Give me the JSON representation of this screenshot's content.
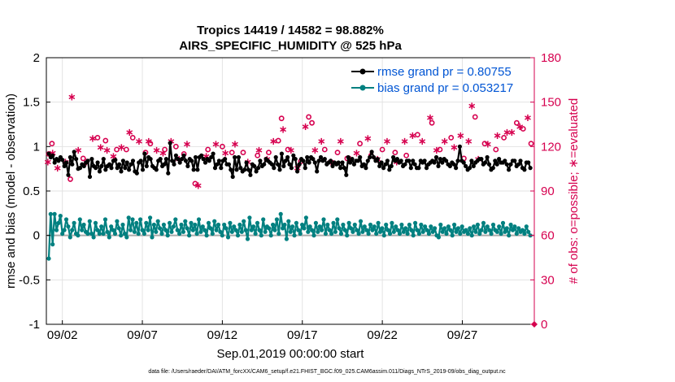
{
  "chart_data": {
    "type": "line",
    "title_line1": "Tropics 14419 / 14582 = 98.882%",
    "title_line2": "AIRS_SPECIFIC_HUMIDITY @ 525 hPa",
    "ylabel_left": "rmse and bias (model - observation)",
    "ylabel_right": "# of obs: o=possible; ∗=evaluated",
    "xlabel": "Sep.01,2019 00:00:00 start",
    "footer": "data file: /Users/raeder/DAI/ATM_forcXX/CAM6_setup/f.e21.FHIST_BGC.f09_025.CAM6assim.011/Diags_NTrS_2019-09/obs_diag_output.nc",
    "ylim_left": [
      -1,
      2
    ],
    "ylim_right": [
      0,
      180
    ],
    "xlim": [
      0,
      30.5
    ],
    "grid": true,
    "legend_position": "top-right",
    "left_ticks": [
      "-1",
      "-0.5",
      "0",
      "0.5",
      "1",
      "1.5",
      "2"
    ],
    "right_ticks": [
      "0",
      "30",
      "60",
      "90",
      "120",
      "150",
      "180"
    ],
    "x_ticks": [
      {
        "x": 1,
        "label": "09/02"
      },
      {
        "x": 6,
        "label": "09/07"
      },
      {
        "x": 11,
        "label": "09/12"
      },
      {
        "x": 16,
        "label": "09/17"
      },
      {
        "x": 21,
        "label": "09/22"
      },
      {
        "x": 26,
        "label": "09/27"
      }
    ],
    "colors": {
      "rmse": "#000000",
      "bias": "#008080",
      "obs": "#d6004f",
      "zero_line": "#aaaaaa",
      "grid": "#e3e3e3"
    },
    "series": [
      {
        "name": "rmse",
        "label": "rmse grand pr = 0.80755",
        "values": [
          0.92,
          0.88,
          0.9,
          0.82,
          0.86,
          0.84,
          0.88,
          0.85,
          0.78,
          0.82,
          0.68,
          0.88,
          0.8,
          0.94,
          0.86,
          0.75,
          0.76,
          0.8,
          0.78,
          0.82,
          0.84,
          0.66,
          0.86,
          0.78,
          0.76,
          0.82,
          0.72,
          0.78,
          0.86,
          0.74,
          0.78,
          0.8,
          0.76,
          0.84,
          0.85,
          0.76,
          0.8,
          0.72,
          0.84,
          0.76,
          0.82,
          0.74,
          0.8,
          0.84,
          0.72,
          0.7,
          0.82,
          0.84,
          0.74,
          0.92,
          0.78,
          0.88,
          0.86,
          0.78,
          0.76,
          0.74,
          0.84,
          0.86,
          0.78,
          0.8,
          0.86,
          0.7,
          1.04,
          0.84,
          0.8,
          0.9,
          0.86,
          0.82,
          0.86,
          0.9,
          0.84,
          0.78,
          0.86,
          0.84,
          0.74,
          0.88,
          0.74,
          0.88,
          0.9,
          0.86,
          0.82,
          0.86,
          0.84,
          0.88,
          0.92,
          0.76,
          0.8,
          0.84,
          0.76,
          0.84,
          0.86,
          0.8,
          0.8,
          0.74,
          0.66,
          0.88,
          0.74,
          0.88,
          0.76,
          0.72,
          0.74,
          0.82,
          0.74,
          0.68,
          0.8,
          0.78,
          0.72,
          0.76,
          0.84,
          0.78,
          0.8,
          0.86,
          0.84,
          0.82,
          0.8,
          0.76,
          0.88,
          0.8,
          0.74,
          0.92,
          0.78,
          0.84,
          0.88,
          0.8,
          0.76,
          0.9,
          0.86,
          0.72,
          0.8,
          0.86,
          0.84,
          0.76,
          0.88,
          0.82,
          0.88,
          0.86,
          0.82,
          0.72,
          0.84,
          0.88,
          0.84,
          0.86,
          0.8,
          0.82,
          0.84,
          0.78,
          0.82,
          0.8,
          0.82,
          0.76,
          0.82,
          0.76,
          0.68,
          0.88,
          0.82,
          0.86,
          0.8,
          0.84,
          0.84,
          0.88,
          0.78,
          0.8,
          0.76,
          0.84,
          0.88,
          0.94,
          0.88,
          0.84,
          0.86,
          0.78,
          0.82,
          0.76,
          0.8,
          0.84,
          0.74,
          0.78,
          0.88,
          0.84,
          0.86,
          0.82,
          0.84,
          0.78,
          0.8,
          0.84,
          0.84,
          0.76,
          0.84,
          0.8,
          0.76,
          0.76,
          0.84,
          0.82,
          0.84,
          0.76,
          0.8,
          0.82,
          0.84,
          0.82,
          0.88,
          0.78,
          0.86,
          0.82,
          0.86,
          0.84,
          0.8,
          0.78,
          0.82,
          0.8,
          0.76,
          0.84,
          1.0,
          0.84,
          0.82,
          0.78,
          0.74,
          0.76,
          0.84,
          0.78,
          0.82,
          0.84,
          0.86,
          0.86,
          0.8,
          0.82,
          0.88,
          0.8,
          0.74,
          0.76,
          0.84,
          0.8,
          0.86,
          0.82,
          0.82,
          0.84,
          0.8,
          0.74,
          0.8,
          0.84,
          0.84,
          0.78,
          0.8,
          0.84,
          0.76,
          0.74,
          0.82,
          0.82,
          0.76
        ]
      },
      {
        "name": "bias",
        "label": "bias grand pr = 0.053217",
        "values": [
          -0.26,
          0.24,
          -0.1,
          0.24,
          0.06,
          0.14,
          0.22,
          0.02,
          0.06,
          0.18,
          0.1,
          -0.02,
          0.06,
          0.14,
          0.02,
          0.0,
          0.18,
          0.06,
          0.12,
          0.04,
          0.02,
          0.16,
          0.02,
          -0.02,
          0.14,
          0.06,
          0.02,
          0.1,
          0.02,
          0.18,
          0.04,
          -0.02,
          0.1,
          0.06,
          0.02,
          0.16,
          0.08,
          0.0,
          0.12,
          0.02,
          -0.02,
          0.2,
          0.06,
          0.18,
          0.04,
          0.14,
          0.02,
          0.18,
          0.06,
          0.02,
          0.14,
          0.06,
          0.2,
          -0.02,
          0.12,
          0.04,
          0.16,
          0.08,
          0.02,
          0.12,
          0.06,
          0.0,
          0.14,
          0.04,
          0.1,
          0.18,
          0.06,
          0.02,
          0.12,
          0.04,
          0.16,
          0.08,
          0.0,
          0.14,
          0.06,
          0.12,
          0.02,
          0.18,
          0.04,
          0.1,
          0.06,
          0.0,
          0.14,
          0.08,
          0.02,
          0.16,
          0.06,
          0.12,
          0.04,
          0.0,
          0.12,
          0.08,
          -0.02,
          0.14,
          0.04,
          0.1,
          0.06,
          0.0,
          0.12,
          0.04,
          0.16,
          0.06,
          -0.04,
          0.2,
          0.06,
          0.1,
          0.02,
          0.14,
          0.06,
          0.0,
          0.18,
          0.04,
          0.1,
          0.08,
          0.0,
          0.12,
          0.06,
          0.18,
          0.02,
          0.24,
          0.08,
          0.12,
          -0.04,
          0.16,
          0.04,
          0.1,
          0.0,
          0.14,
          0.06,
          0.02,
          0.12,
          0.08,
          0.2,
          0.04,
          0.1,
          0.06,
          0.0,
          0.14,
          0.04,
          0.1,
          0.06,
          0.18,
          0.02,
          0.12,
          0.06,
          0.02,
          0.14,
          0.04,
          0.18,
          0.08,
          0.02,
          0.12,
          0.06,
          0.0,
          0.14,
          0.08,
          0.04,
          0.12,
          0.06,
          0.02,
          0.16,
          0.04,
          0.1,
          0.06,
          0.02,
          0.12,
          0.06,
          0.1,
          0.02,
          0.14,
          0.04,
          0.08,
          0.0,
          0.12,
          0.06,
          0.02,
          0.14,
          0.04,
          0.1,
          0.06,
          0.02,
          0.12,
          0.04,
          0.08,
          0.02,
          0.12,
          0.06,
          0.0,
          0.14,
          0.06,
          0.02,
          0.12,
          0.04,
          0.1,
          0.06,
          0.02,
          0.1,
          0.04,
          0.08,
          0.0,
          -0.02,
          0.12,
          0.04,
          0.08,
          0.02,
          0.1,
          0.06,
          0.0,
          0.12,
          0.04,
          0.08,
          0.02,
          0.1,
          0.04,
          0.06,
          0.02,
          0.08,
          0.0,
          0.1,
          0.04,
          0.12,
          0.02,
          0.06,
          0.14,
          0.04,
          0.1,
          0.06,
          0.02,
          0.12,
          0.06,
          0.04,
          0.1,
          0.02,
          0.14,
          0.04,
          0.08,
          0.0,
          0.12,
          0.06,
          0.1,
          0.02,
          0.08,
          0.04,
          0.06,
          0.02,
          0.1,
          0.04,
          0.0
        ]
      }
    ],
    "obs_possible": [
      {
        "x": 0.15,
        "y": 115
      },
      {
        "x": 0.35,
        "y": 122
      },
      {
        "x": 1.5,
        "y": 98
      },
      {
        "x": 2.3,
        "y": 112
      },
      {
        "x": 3.2,
        "y": 126
      },
      {
        "x": 3.7,
        "y": 124
      },
      {
        "x": 4.4,
        "y": 118
      },
      {
        "x": 5.0,
        "y": 118
      },
      {
        "x": 5.4,
        "y": 126
      },
      {
        "x": 6.2,
        "y": 116
      },
      {
        "x": 6.5,
        "y": 122
      },
      {
        "x": 7.4,
        "y": 118
      },
      {
        "x": 8.1,
        "y": 120
      },
      {
        "x": 8.6,
        "y": 115
      },
      {
        "x": 9.3,
        "y": 95
      },
      {
        "x": 10.1,
        "y": 118
      },
      {
        "x": 11.0,
        "y": 120
      },
      {
        "x": 11.6,
        "y": 116
      },
      {
        "x": 12.3,
        "y": 116
      },
      {
        "x": 13.2,
        "y": 114
      },
      {
        "x": 13.9,
        "y": 116
      },
      {
        "x": 14.5,
        "y": 124
      },
      {
        "x": 14.7,
        "y": 139
      },
      {
        "x": 15.1,
        "y": 118
      },
      {
        "x": 15.9,
        "y": 110
      },
      {
        "x": 16.4,
        "y": 140
      },
      {
        "x": 16.6,
        "y": 136
      },
      {
        "x": 17.4,
        "y": 118
      },
      {
        "x": 18.2,
        "y": 116
      },
      {
        "x": 18.8,
        "y": 112
      },
      {
        "x": 19.6,
        "y": 122
      },
      {
        "x": 20.3,
        "y": 114
      },
      {
        "x": 21.0,
        "y": 118
      },
      {
        "x": 21.8,
        "y": 116
      },
      {
        "x": 22.5,
        "y": 114
      },
      {
        "x": 23.2,
        "y": 128
      },
      {
        "x": 24.1,
        "y": 136
      },
      {
        "x": 24.6,
        "y": 118
      },
      {
        "x": 25.3,
        "y": 126
      },
      {
        "x": 26.1,
        "y": 112
      },
      {
        "x": 26.8,
        "y": 140
      },
      {
        "x": 27.4,
        "y": 122
      },
      {
        "x": 28.1,
        "y": 118
      },
      {
        "x": 28.6,
        "y": 126
      },
      {
        "x": 29.4,
        "y": 136
      },
      {
        "x": 29.8,
        "y": 132
      },
      {
        "x": 30.3,
        "y": 122
      }
    ],
    "obs_evaluated": [
      {
        "x": 0.1,
        "y": 110
      },
      {
        "x": 0.4,
        "y": 116
      },
      {
        "x": 0.7,
        "y": 106
      },
      {
        "x": 1.2,
        "y": 110
      },
      {
        "x": 1.6,
        "y": 154
      },
      {
        "x": 2.0,
        "y": 118
      },
      {
        "x": 2.5,
        "y": 110
      },
      {
        "x": 2.9,
        "y": 126
      },
      {
        "x": 3.4,
        "y": 120
      },
      {
        "x": 3.8,
        "y": 118
      },
      {
        "x": 4.2,
        "y": 114
      },
      {
        "x": 4.7,
        "y": 120
      },
      {
        "x": 5.2,
        "y": 130
      },
      {
        "x": 5.8,
        "y": 124
      },
      {
        "x": 6.4,
        "y": 124
      },
      {
        "x": 6.9,
        "y": 118
      },
      {
        "x": 7.3,
        "y": 116
      },
      {
        "x": 7.8,
        "y": 124
      },
      {
        "x": 8.3,
        "y": 112
      },
      {
        "x": 8.8,
        "y": 122
      },
      {
        "x": 9.5,
        "y": 94
      },
      {
        "x": 10.0,
        "y": 114
      },
      {
        "x": 10.6,
        "y": 122
      },
      {
        "x": 11.2,
        "y": 116
      },
      {
        "x": 11.8,
        "y": 122
      },
      {
        "x": 12.6,
        "y": 110
      },
      {
        "x": 13.3,
        "y": 118
      },
      {
        "x": 13.8,
        "y": 112
      },
      {
        "x": 14.2,
        "y": 124
      },
      {
        "x": 14.8,
        "y": 132
      },
      {
        "x": 15.3,
        "y": 118
      },
      {
        "x": 15.7,
        "y": 106
      },
      {
        "x": 16.2,
        "y": 134
      },
      {
        "x": 16.8,
        "y": 118
      },
      {
        "x": 17.2,
        "y": 124
      },
      {
        "x": 17.8,
        "y": 110
      },
      {
        "x": 18.4,
        "y": 124
      },
      {
        "x": 19.0,
        "y": 112
      },
      {
        "x": 19.4,
        "y": 116
      },
      {
        "x": 20.1,
        "y": 126
      },
      {
        "x": 20.7,
        "y": 112
      },
      {
        "x": 21.3,
        "y": 124
      },
      {
        "x": 21.9,
        "y": 110
      },
      {
        "x": 22.4,
        "y": 124
      },
      {
        "x": 22.9,
        "y": 128
      },
      {
        "x": 23.5,
        "y": 124
      },
      {
        "x": 24.0,
        "y": 140
      },
      {
        "x": 24.4,
        "y": 118
      },
      {
        "x": 24.9,
        "y": 124
      },
      {
        "x": 25.5,
        "y": 120
      },
      {
        "x": 25.9,
        "y": 128
      },
      {
        "x": 26.4,
        "y": 124
      },
      {
        "x": 26.6,
        "y": 148
      },
      {
        "x": 27.0,
        "y": 112
      },
      {
        "x": 27.6,
        "y": 122
      },
      {
        "x": 28.2,
        "y": 128
      },
      {
        "x": 28.8,
        "y": 130
      },
      {
        "x": 29.1,
        "y": 130
      },
      {
        "x": 29.6,
        "y": 134
      },
      {
        "x": 30.1,
        "y": 140
      }
    ]
  }
}
